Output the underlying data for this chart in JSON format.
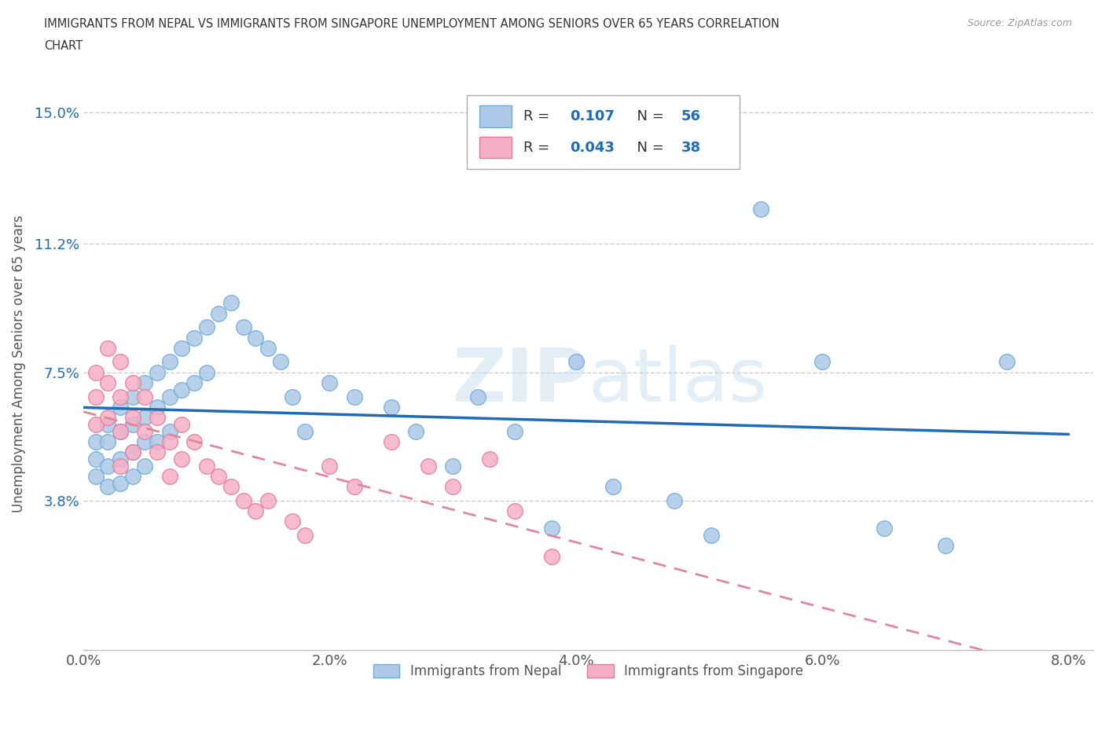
{
  "title": "IMMIGRANTS FROM NEPAL VS IMMIGRANTS FROM SINGAPORE UNEMPLOYMENT AMONG SENIORS OVER 65 YEARS CORRELATION\nCHART",
  "source": "Source: ZipAtlas.com",
  "ylabel": "Unemployment Among Seniors over 65 years",
  "xlim": [
    0.0,
    0.082
  ],
  "ylim": [
    -0.005,
    0.16
  ],
  "xticks": [
    0.0,
    0.02,
    0.04,
    0.06,
    0.08
  ],
  "xticklabels": [
    "0.0%",
    "2.0%",
    "4.0%",
    "6.0%",
    "8.0%"
  ],
  "yticks": [
    0.0,
    0.038,
    0.075,
    0.112,
    0.15
  ],
  "yticklabels": [
    "",
    "3.8%",
    "7.5%",
    "11.2%",
    "15.0%"
  ],
  "nepal_color": "#adc8e8",
  "singapore_color": "#f5afc5",
  "nepal_edge": "#6baed6",
  "singapore_edge": "#e8799a",
  "trend_nepal_color": "#1f6bb5",
  "trend_singapore_color": "#e08898",
  "R_nepal": 0.107,
  "N_nepal": 56,
  "R_singapore": 0.043,
  "N_singapore": 38,
  "legend_label_nepal": "Immigrants from Nepal",
  "legend_label_singapore": "Immigrants from Singapore",
  "watermark": "ZIPatlas",
  "nepal_x": [
    0.001,
    0.001,
    0.001,
    0.002,
    0.002,
    0.002,
    0.002,
    0.003,
    0.003,
    0.003,
    0.003,
    0.004,
    0.004,
    0.004,
    0.004,
    0.005,
    0.005,
    0.005,
    0.005,
    0.006,
    0.006,
    0.006,
    0.007,
    0.007,
    0.007,
    0.008,
    0.008,
    0.009,
    0.009,
    0.01,
    0.01,
    0.011,
    0.012,
    0.013,
    0.014,
    0.015,
    0.016,
    0.017,
    0.018,
    0.02,
    0.022,
    0.025,
    0.027,
    0.03,
    0.032,
    0.035,
    0.038,
    0.04,
    0.043,
    0.048,
    0.051,
    0.055,
    0.06,
    0.065,
    0.07,
    0.075
  ],
  "nepal_y": [
    0.055,
    0.05,
    0.045,
    0.06,
    0.055,
    0.048,
    0.042,
    0.065,
    0.058,
    0.05,
    0.043,
    0.068,
    0.06,
    0.052,
    0.045,
    0.072,
    0.062,
    0.055,
    0.048,
    0.075,
    0.065,
    0.055,
    0.078,
    0.068,
    0.058,
    0.082,
    0.07,
    0.085,
    0.072,
    0.088,
    0.075,
    0.092,
    0.095,
    0.088,
    0.085,
    0.082,
    0.078,
    0.068,
    0.058,
    0.072,
    0.068,
    0.065,
    0.058,
    0.048,
    0.068,
    0.058,
    0.03,
    0.078,
    0.042,
    0.038,
    0.028,
    0.122,
    0.078,
    0.03,
    0.025,
    0.078
  ],
  "singapore_x": [
    0.001,
    0.001,
    0.001,
    0.002,
    0.002,
    0.002,
    0.003,
    0.003,
    0.003,
    0.003,
    0.004,
    0.004,
    0.004,
    0.005,
    0.005,
    0.006,
    0.006,
    0.007,
    0.007,
    0.008,
    0.008,
    0.009,
    0.01,
    0.011,
    0.012,
    0.013,
    0.014,
    0.015,
    0.017,
    0.018,
    0.02,
    0.022,
    0.025,
    0.028,
    0.03,
    0.033,
    0.035,
    0.038
  ],
  "singapore_y": [
    0.075,
    0.068,
    0.06,
    0.082,
    0.072,
    0.062,
    0.078,
    0.068,
    0.058,
    0.048,
    0.072,
    0.062,
    0.052,
    0.068,
    0.058,
    0.062,
    0.052,
    0.055,
    0.045,
    0.06,
    0.05,
    0.055,
    0.048,
    0.045,
    0.042,
    0.038,
    0.035,
    0.038,
    0.032,
    0.028,
    0.048,
    0.042,
    0.055,
    0.048,
    0.042,
    0.05,
    0.035,
    0.022
  ],
  "gridline_color": "#cccccc",
  "background_color": "#ffffff",
  "axis_label_color": "#1f6bb5",
  "axis_text_color": "#555555"
}
